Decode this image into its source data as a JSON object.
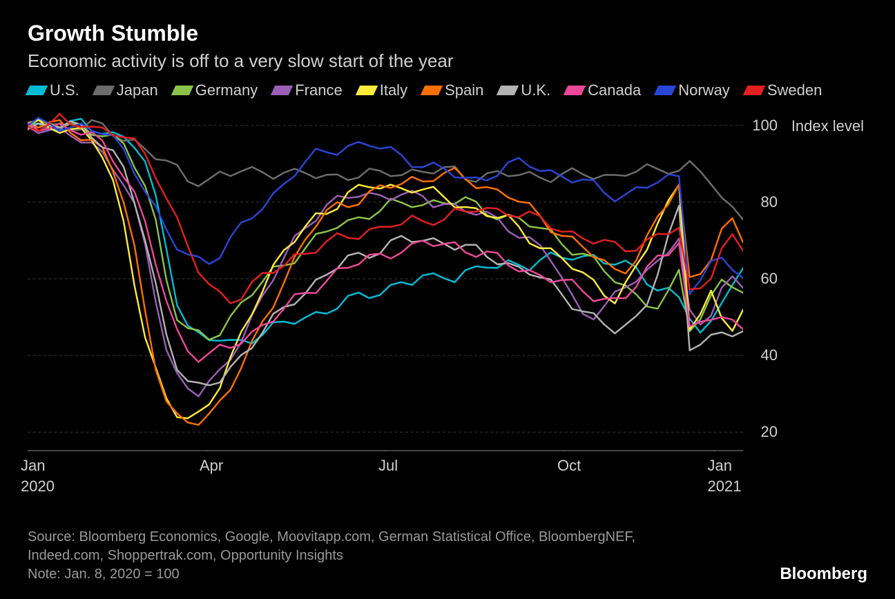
{
  "header": {
    "title": "Growth Stumble",
    "subtitle": "Economic activity is off to a very slow start of the year"
  },
  "chart": {
    "type": "line",
    "y_axis_title": "Index level",
    "ylim": [
      15,
      105
    ],
    "yticks": [
      20,
      40,
      60,
      80,
      100
    ],
    "xticks": [
      {
        "pos": 0.0,
        "label": "Jan",
        "year": "2020"
      },
      {
        "pos": 0.25,
        "label": "Apr"
      },
      {
        "pos": 0.5,
        "label": "Jul"
      },
      {
        "pos": 0.75,
        "label": "Oct"
      },
      {
        "pos": 0.96,
        "label": "Jan",
        "year": "2021"
      }
    ],
    "background_color": "#000000",
    "grid_color": "#3a3a3a",
    "series": [
      {
        "name": "U.S.",
        "color": "#00bcd4",
        "data": [
          100,
          100,
          100,
          100,
          100,
          100,
          99,
          99,
          98,
          97,
          95,
          90,
          80,
          68,
          55,
          48,
          45,
          44,
          44,
          43,
          44,
          45,
          46,
          47,
          48,
          49,
          50,
          51,
          52,
          53,
          54,
          55,
          56,
          57,
          58,
          59,
          59,
          60,
          60,
          61,
          61,
          62,
          62,
          63,
          63,
          64,
          64,
          64,
          65,
          65,
          65,
          66,
          66,
          66,
          65,
          64,
          63,
          62,
          60,
          58,
          57,
          55,
          50,
          45,
          48,
          55,
          60,
          62
        ]
      },
      {
        "name": "Japan",
        "color": "#6c6c6c",
        "data": [
          100,
          100,
          100,
          100,
          100,
          100,
          100,
          99,
          98,
          97,
          96,
          94,
          92,
          90,
          88,
          86,
          86,
          86,
          87,
          87,
          88,
          88,
          88,
          88,
          88,
          87,
          87,
          87,
          87,
          87,
          87,
          87,
          87,
          87,
          88,
          88,
          88,
          88,
          88,
          88,
          88,
          87,
          87,
          87,
          87,
          87,
          87,
          87,
          87,
          87,
          87,
          87,
          87,
          87,
          87,
          87,
          88,
          88,
          88,
          88,
          89,
          89,
          90,
          88,
          85,
          80,
          78,
          77
        ]
      },
      {
        "name": "Germany",
        "color": "#8bc34a",
        "data": [
          100,
          100,
          100,
          100,
          100,
          100,
          99,
          98,
          96,
          94,
          90,
          85,
          75,
          60,
          50,
          46,
          45,
          45,
          47,
          50,
          53,
          56,
          59,
          62,
          64,
          66,
          68,
          70,
          72,
          74,
          75,
          76,
          77,
          78,
          79,
          79,
          80,
          80,
          80,
          80,
          80,
          80,
          79,
          78,
          77,
          76,
          75,
          74,
          73,
          72,
          70,
          68,
          66,
          64,
          62,
          60,
          58,
          56,
          54,
          52,
          55,
          62,
          48,
          50,
          55,
          60,
          58,
          55
        ]
      },
      {
        "name": "France",
        "color": "#9c5fb8",
        "data": [
          100,
          100,
          99,
          98,
          97,
          96,
          95,
          93,
          90,
          85,
          78,
          68,
          55,
          42,
          35,
          32,
          30,
          32,
          35,
          40,
          45,
          50,
          55,
          60,
          65,
          70,
          74,
          77,
          79,
          80,
          81,
          82,
          82,
          82,
          82,
          82,
          81,
          81,
          80,
          80,
          79,
          78,
          77,
          76,
          75,
          74,
          72,
          70,
          68,
          65,
          60,
          55,
          52,
          51,
          52,
          55,
          58,
          60,
          62,
          65,
          68,
          70,
          50,
          48,
          52,
          58,
          60,
          58
        ]
      },
      {
        "name": "Italy",
        "color": "#ffeb3b",
        "data": [
          100,
          100,
          100,
          100,
          99,
          98,
          96,
          92,
          85,
          75,
          60,
          45,
          35,
          28,
          25,
          24,
          25,
          28,
          32,
          38,
          45,
          52,
          58,
          63,
          67,
          70,
          73,
          76,
          78,
          80,
          82,
          83,
          84,
          84,
          84,
          84,
          84,
          83,
          82,
          81,
          80,
          79,
          78,
          77,
          76,
          75,
          73,
          71,
          69,
          67,
          65,
          63,
          61,
          59,
          57,
          55,
          58,
          62,
          68,
          75,
          80,
          85,
          48,
          50,
          55,
          50,
          48,
          52
        ]
      },
      {
        "name": "Spain",
        "color": "#ff6f00",
        "data": [
          100,
          100,
          100,
          100,
          99,
          98,
          96,
          93,
          88,
          80,
          68,
          52,
          38,
          28,
          23,
          22,
          23,
          25,
          28,
          32,
          37,
          42,
          48,
          54,
          60,
          65,
          70,
          74,
          77,
          79,
          80,
          81,
          82,
          83,
          84,
          85,
          86,
          86,
          87,
          87,
          87,
          86,
          85,
          84,
          83,
          82,
          80,
          78,
          76,
          74,
          72,
          70,
          68,
          66,
          64,
          62,
          63,
          66,
          70,
          75,
          80,
          85,
          60,
          62,
          66,
          72,
          74,
          70
        ]
      },
      {
        "name": "U.K.",
        "color": "#b3b3b3",
        "data": [
          100,
          100,
          100,
          100,
          100,
          99,
          98,
          96,
          93,
          88,
          80,
          70,
          58,
          46,
          38,
          33,
          31,
          32,
          34,
          37,
          40,
          43,
          46,
          49,
          52,
          55,
          57,
          59,
          61,
          63,
          65,
          66,
          67,
          68,
          69,
          70,
          70,
          70,
          70,
          70,
          69,
          68,
          67,
          66,
          65,
          64,
          63,
          62,
          60,
          58,
          56,
          54,
          52,
          50,
          48,
          46,
          47,
          50,
          55,
          62,
          70,
          78,
          42,
          43,
          45,
          47,
          46,
          45
        ]
      },
      {
        "name": "Canada",
        "color": "#ec4899",
        "data": [
          100,
          100,
          100,
          100,
          99,
          98,
          97,
          95,
          92,
          88,
          82,
          74,
          64,
          54,
          46,
          42,
          40,
          40,
          41,
          42,
          44,
          46,
          48,
          50,
          52,
          54,
          56,
          58,
          60,
          62,
          63,
          64,
          65,
          66,
          67,
          68,
          68,
          69,
          69,
          69,
          69,
          68,
          67,
          66,
          65,
          64,
          63,
          62,
          61,
          60,
          59,
          58,
          57,
          56,
          55,
          54,
          55,
          58,
          62,
          66,
          68,
          70,
          46,
          48,
          50,
          50,
          49,
          48
        ]
      },
      {
        "name": "Norway",
        "color": "#2945d6",
        "data": [
          100,
          100,
          100,
          100,
          100,
          100,
          99,
          98,
          96,
          93,
          89,
          84,
          78,
          72,
          68,
          66,
          65,
          65,
          67,
          70,
          73,
          76,
          79,
          82,
          85,
          88,
          90,
          92,
          93,
          94,
          95,
          95,
          95,
          94,
          93,
          92,
          91,
          90,
          89,
          88,
          87,
          86,
          86,
          87,
          88,
          89,
          90,
          90,
          89,
          88,
          87,
          86,
          85,
          84,
          83,
          82,
          82,
          83,
          84,
          85,
          86,
          87,
          58,
          60,
          63,
          65,
          63,
          60
        ]
      },
      {
        "name": "Sweden",
        "color": "#e41f1f",
        "data": [
          100,
          100,
          100,
          101,
          100,
          101,
          100,
          99,
          98,
          97,
          95,
          92,
          88,
          82,
          75,
          68,
          62,
          58,
          56,
          55,
          56,
          58,
          60,
          62,
          64,
          66,
          67,
          68,
          69,
          70,
          71,
          72,
          73,
          73,
          74,
          74,
          75,
          75,
          76,
          76,
          77,
          77,
          78,
          78,
          78,
          78,
          77,
          76,
          75,
          74,
          73,
          72,
          71,
          70,
          69,
          68,
          68,
          69,
          70,
          71,
          72,
          73,
          56,
          58,
          62,
          68,
          70,
          67
        ]
      }
    ],
    "line_width": 2.5
  },
  "footer": {
    "source": "Source: Bloomberg Economics, Google, Moovitapp.com, German Statistical Office, BloombergNEF, Indeed.com, Shoppertrak.com, Opportunity Insights",
    "note": "Note: Jan. 8, 2020 = 100",
    "brand": "Bloomberg"
  }
}
